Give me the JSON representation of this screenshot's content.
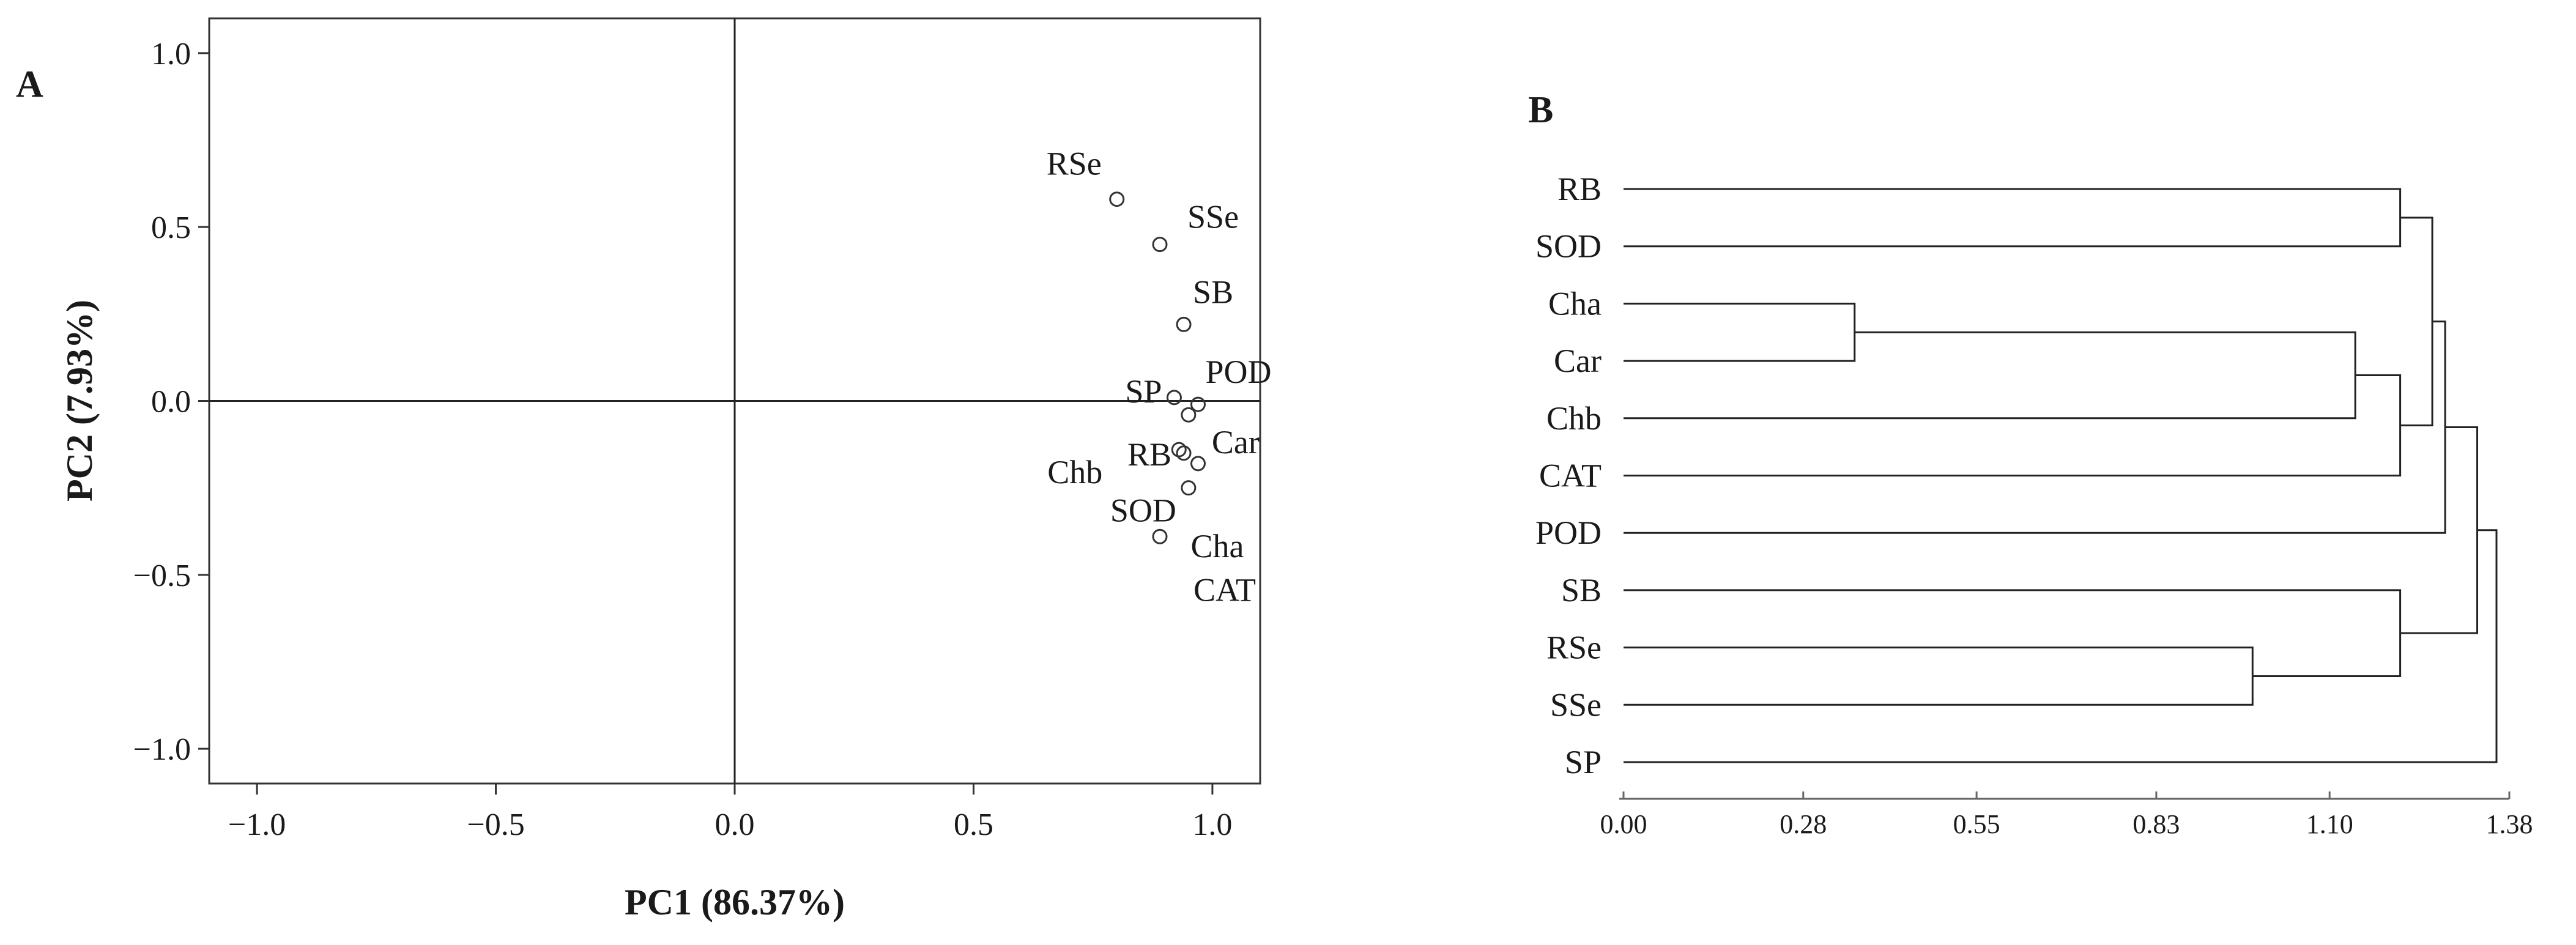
{
  "panels": {
    "a_label": "A",
    "b_label": "B"
  },
  "chart_data": [
    {
      "id": "A",
      "type": "scatter",
      "title": "",
      "xlabel": "PC1 (86.37%)",
      "ylabel": "PC2 (7.93%)",
      "xlim": [
        -1.1,
        1.1
      ],
      "ylim": [
        -1.1,
        1.1
      ],
      "xticks": [
        -1.0,
        -0.5,
        0.0,
        0.5,
        1.0
      ],
      "xtick_labels": [
        "−1.0",
        "−0.5",
        "0.0",
        "0.5",
        "1.0"
      ],
      "yticks": [
        1.0,
        0.5,
        0.0,
        -0.5,
        -1.0
      ],
      "ytick_labels": [
        "1.0",
        "0.5",
        "0.0",
        "−0.5",
        "−1.0"
      ],
      "zero_lines": true,
      "points": [
        {
          "label": "RSe",
          "x": 0.8,
          "y": 0.58
        },
        {
          "label": "SSe",
          "x": 0.89,
          "y": 0.45
        },
        {
          "label": "SB",
          "x": 0.94,
          "y": 0.22
        },
        {
          "label": "SP",
          "x": 0.92,
          "y": 0.01
        },
        {
          "label": "POD",
          "x": 0.97,
          "y": -0.01
        },
        {
          "label": "Car",
          "x": 0.95,
          "y": -0.04
        },
        {
          "label": "Chb",
          "x": 0.93,
          "y": -0.14
        },
        {
          "label": "RB",
          "x": 0.94,
          "y": -0.15
        },
        {
          "label": "Cha",
          "x": 0.97,
          "y": -0.18
        },
        {
          "label": "SOD",
          "x": 0.95,
          "y": -0.25
        },
        {
          "label": "CAT",
          "x": 0.89,
          "y": -0.39
        }
      ]
    },
    {
      "id": "B",
      "type": "dendrogram",
      "title": "",
      "xlim": [
        0.0,
        1.38
      ],
      "xticks": [
        0.0,
        0.28,
        0.55,
        0.83,
        1.1,
        1.38
      ],
      "xtick_labels": [
        "0.00",
        "0.28",
        "0.55",
        "0.83",
        "1.10",
        "1.38"
      ],
      "leaves": [
        "RB",
        "SOD",
        "Cha",
        "Car",
        "Chb",
        "CAT",
        "POD",
        "SB",
        "RSe",
        "SSe",
        "SP"
      ],
      "merges": [
        {
          "a": "Cha",
          "b": "Car",
          "height": 0.36,
          "name": "n1"
        },
        {
          "a": "RSe",
          "b": "SSe",
          "height": 0.98,
          "name": "n2"
        },
        {
          "a": "n1",
          "b": "Chb",
          "height": 1.14,
          "name": "n3"
        },
        {
          "a": "RB",
          "b": "SOD",
          "height": 1.21,
          "name": "n4"
        },
        {
          "a": "n3",
          "b": "CAT",
          "height": 1.21,
          "name": "n5"
        },
        {
          "a": "SB",
          "b": "n2",
          "height": 1.21,
          "name": "n6"
        },
        {
          "a": "n4",
          "b": "n5",
          "height": 1.26,
          "name": "n7"
        },
        {
          "a": "n7",
          "b": "POD",
          "height": 1.28,
          "name": "n8"
        },
        {
          "a": "n8",
          "b": "n6",
          "height": 1.33,
          "name": "n9"
        },
        {
          "a": "n9",
          "b": "SP",
          "height": 1.36,
          "name": "n10"
        }
      ]
    }
  ]
}
